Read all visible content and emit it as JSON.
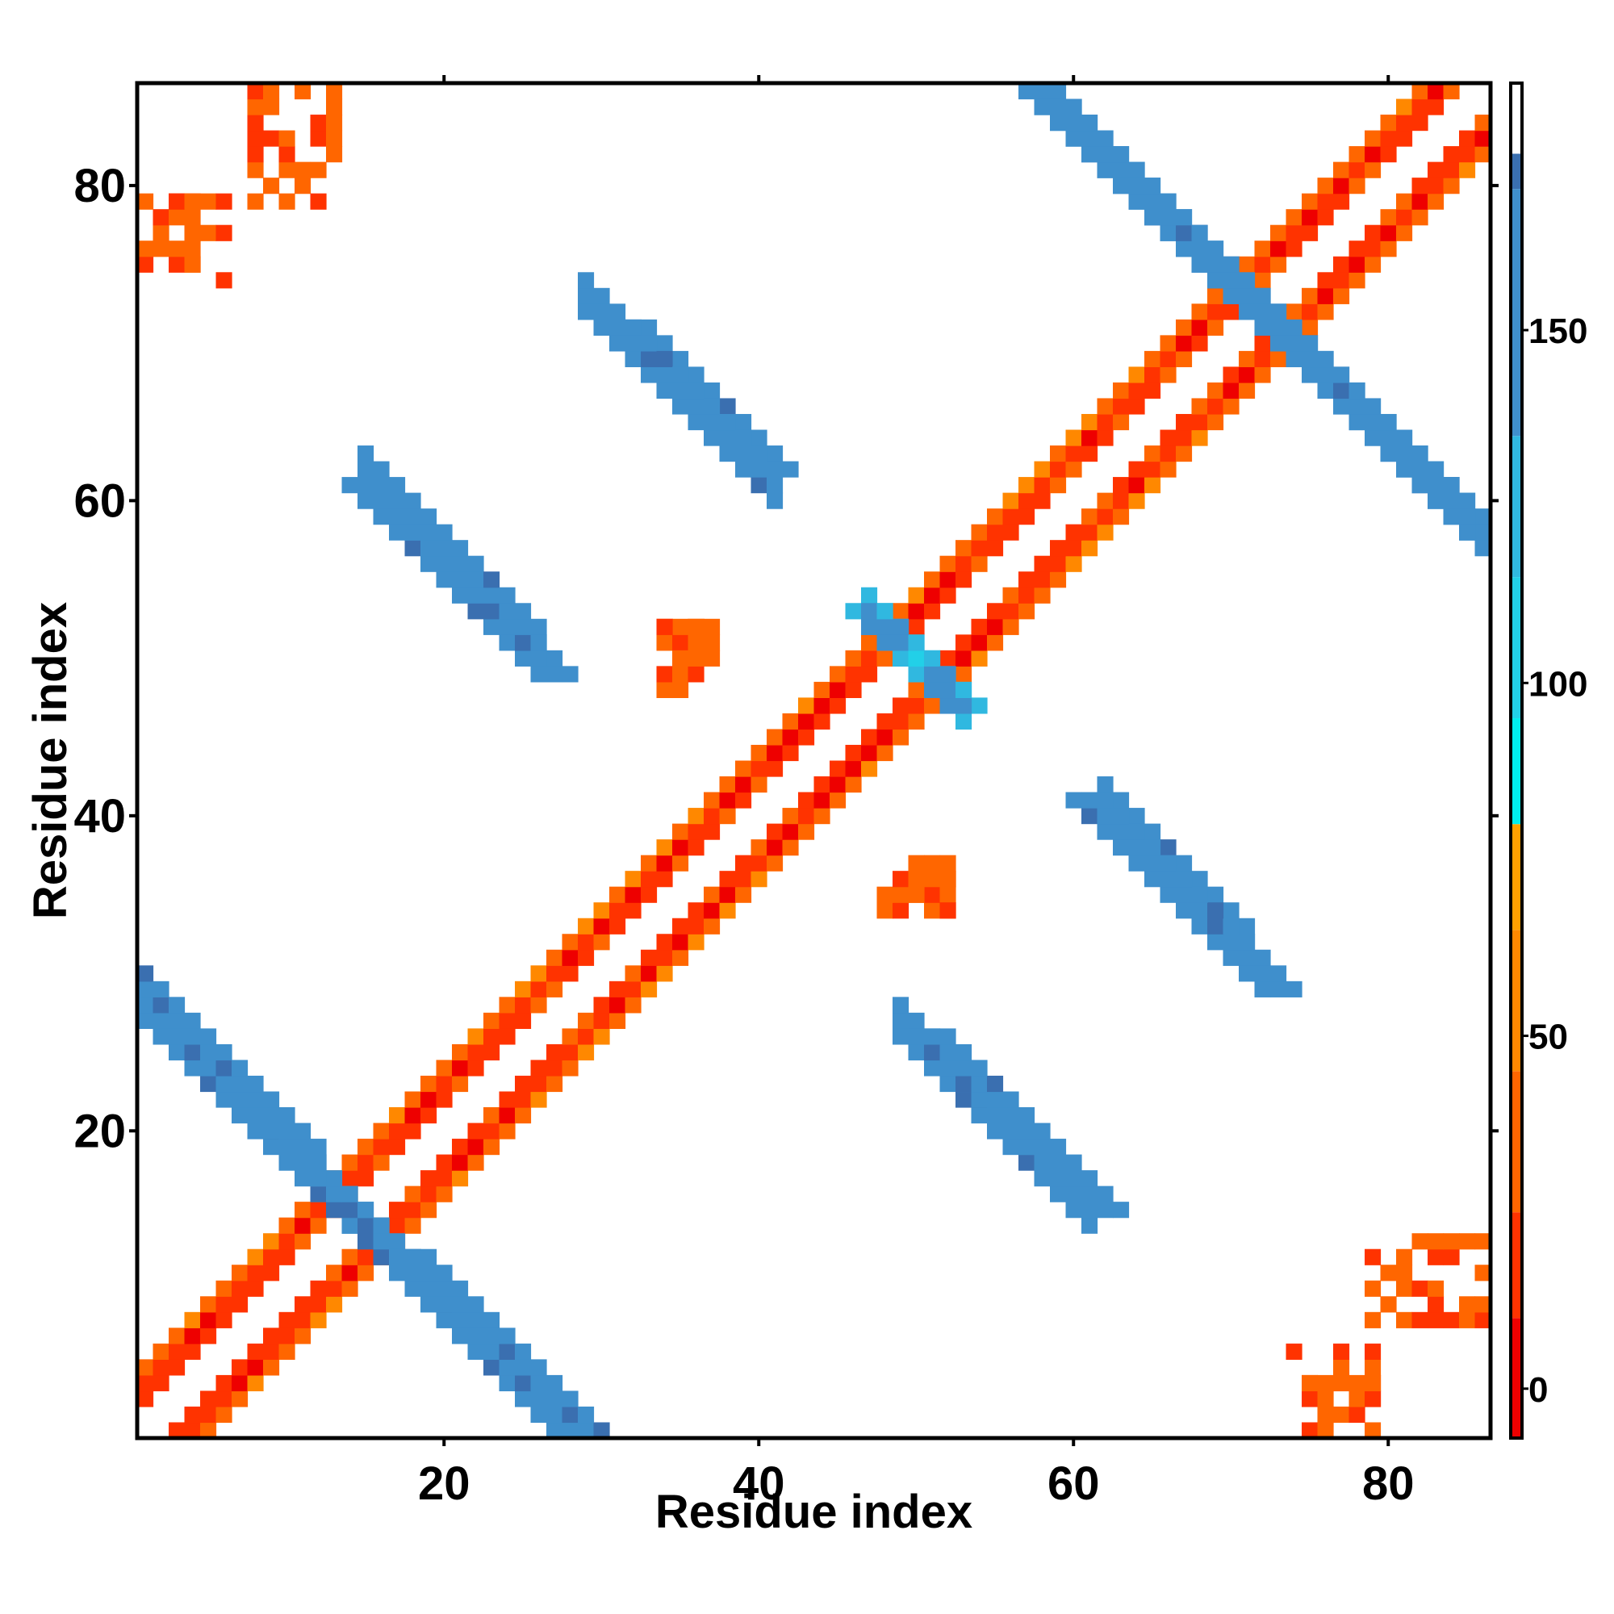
{
  "chart_data": {
    "type": "heatmap",
    "xlabel": "Residue index",
    "ylabel": "Residue index",
    "x_range": [
      1,
      86
    ],
    "y_range": [
      1,
      86
    ],
    "x_ticks": [
      20,
      40,
      60,
      80
    ],
    "y_ticks": [
      20,
      40,
      60,
      80
    ],
    "colorbar": {
      "range": [
        -7,
        185
      ],
      "ticks": [
        0,
        50,
        100,
        150
      ],
      "bands": [
        {
          "from": -7,
          "to": 10,
          "color": "#ee0000"
        },
        {
          "from": 10,
          "to": 25,
          "color": "#ff3300"
        },
        {
          "from": 25,
          "to": 45,
          "color": "#ff6600"
        },
        {
          "from": 45,
          "to": 65,
          "color": "#ff8800"
        },
        {
          "from": 65,
          "to": 80,
          "color": "#ffa000"
        },
        {
          "from": 80,
          "to": 95,
          "color": "#00eeee"
        },
        {
          "from": 95,
          "to": 115,
          "color": "#22d0e8"
        },
        {
          "from": 115,
          "to": 135,
          "color": "#30b8e0"
        },
        {
          "from": 135,
          "to": 170,
          "color": "#3f8fcc"
        },
        {
          "from": 170,
          "to": 175,
          "color": "#3a6fb0"
        },
        {
          "from": 175,
          "to": 185,
          "color": "#ffffff"
        }
      ]
    },
    "diagonal_pairs": {
      "i_minus_j_2_to_4": "red-orange (~10-40)"
    },
    "regions": [
      {
        "x": [
          28,
          33
        ],
        "y": [
          14,
          19
        ],
        "value": 20,
        "note": "helix band near diagonal"
      },
      {
        "x": [
          14,
          28
        ],
        "y": [
          1,
          14
        ],
        "value": 150
      },
      {
        "x": [
          1,
          12
        ],
        "y": [
          17,
          29
        ],
        "value": 150
      },
      {
        "x": [
          49,
          61
        ],
        "y": [
          14,
          26
        ],
        "value": 150
      },
      {
        "x": [
          62,
          72
        ],
        "y": [
          28,
          41
        ],
        "value": 150
      },
      {
        "x": [
          15,
          27
        ],
        "y": [
          49,
          62
        ],
        "value": 150
      },
      {
        "x": [
          29,
          42
        ],
        "y": [
          62,
          72
        ],
        "value": 150
      },
      {
        "x": [
          57,
          71
        ],
        "y": [
          74,
          86
        ],
        "value": 150
      },
      {
        "x": [
          72,
          86
        ],
        "y": [
          58,
          72
        ],
        "value": 150
      },
      {
        "x": [
          1,
          13
        ],
        "y": [
          74,
          86
        ],
        "value": 30
      },
      {
        "x": [
          74,
          86
        ],
        "y": [
          1,
          15
        ],
        "value": 30
      },
      {
        "x": [
          47,
          54
        ],
        "y": [
          40,
          54
        ],
        "value": 120
      }
    ]
  }
}
